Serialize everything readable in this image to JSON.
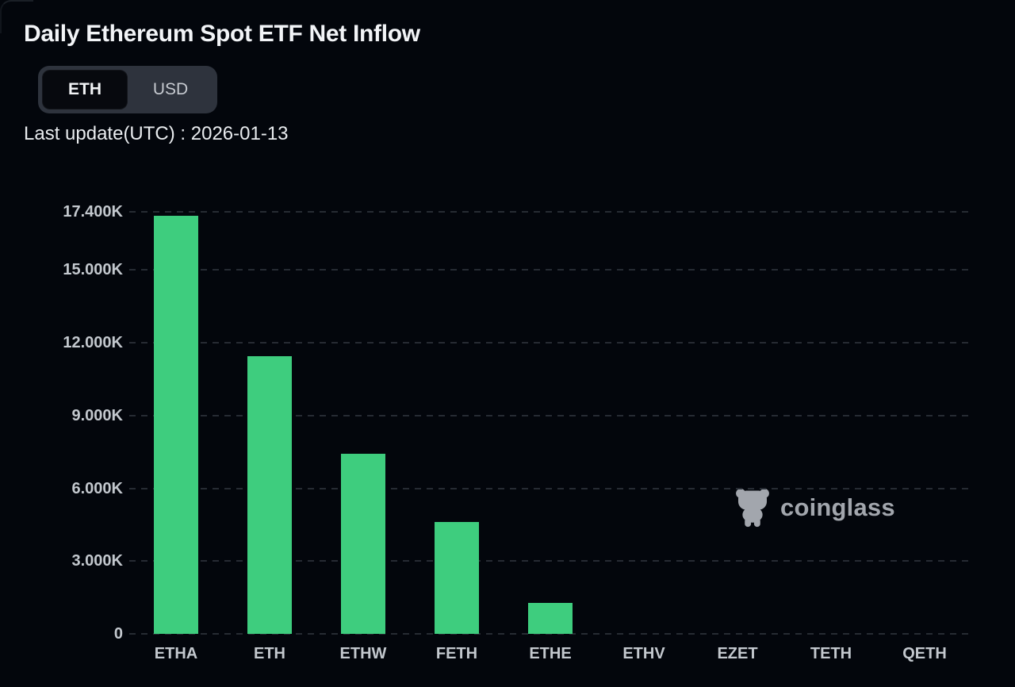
{
  "page": {
    "title": "Daily Ethereum Spot ETF Net Inflow",
    "last_update_label": "Last update(UTC) : 2026-01-13"
  },
  "toggle": {
    "options": [
      {
        "label": "ETH",
        "selected": true
      },
      {
        "label": "USD",
        "selected": false
      }
    ],
    "selected_unit": "ETH"
  },
  "watermark": {
    "text": "coinglass",
    "icon": "coinglass-bull-icon"
  },
  "colors": {
    "background": "#03060c",
    "bar_green": "#3ecd7e",
    "gridline": "#262b33",
    "axis_text": "#c3c8ce",
    "title_text": "#f2f4f7",
    "toggle_track": "#2e333d",
    "toggle_selected_bg": "#07090e",
    "watermark_gray": "#abafb6"
  },
  "chart_data": {
    "type": "bar",
    "title": "Daily Ethereum Spot ETF Net Inflow",
    "unit": "ETH",
    "categories": [
      "ETHA",
      "ETH",
      "ETHW",
      "FETH",
      "ETHE",
      "ETHV",
      "EZET",
      "TETH",
      "QETH"
    ],
    "values": [
      17230,
      11450,
      7420,
      4610,
      1280,
      0,
      0,
      0,
      0
    ],
    "xlabel": "",
    "ylabel": "",
    "ylim": [
      0,
      17400
    ],
    "yticks": [
      {
        "value": 0,
        "label": "0"
      },
      {
        "value": 3000,
        "label": "3.000K"
      },
      {
        "value": 6000,
        "label": "6.000K"
      },
      {
        "value": 9000,
        "label": "9.000K"
      },
      {
        "value": 12000,
        "label": "12.000K"
      },
      {
        "value": 15000,
        "label": "15.000K"
      },
      {
        "value": 17400,
        "label": "17.400K"
      }
    ],
    "grid": "dashed-horizontal",
    "legend": "none"
  }
}
